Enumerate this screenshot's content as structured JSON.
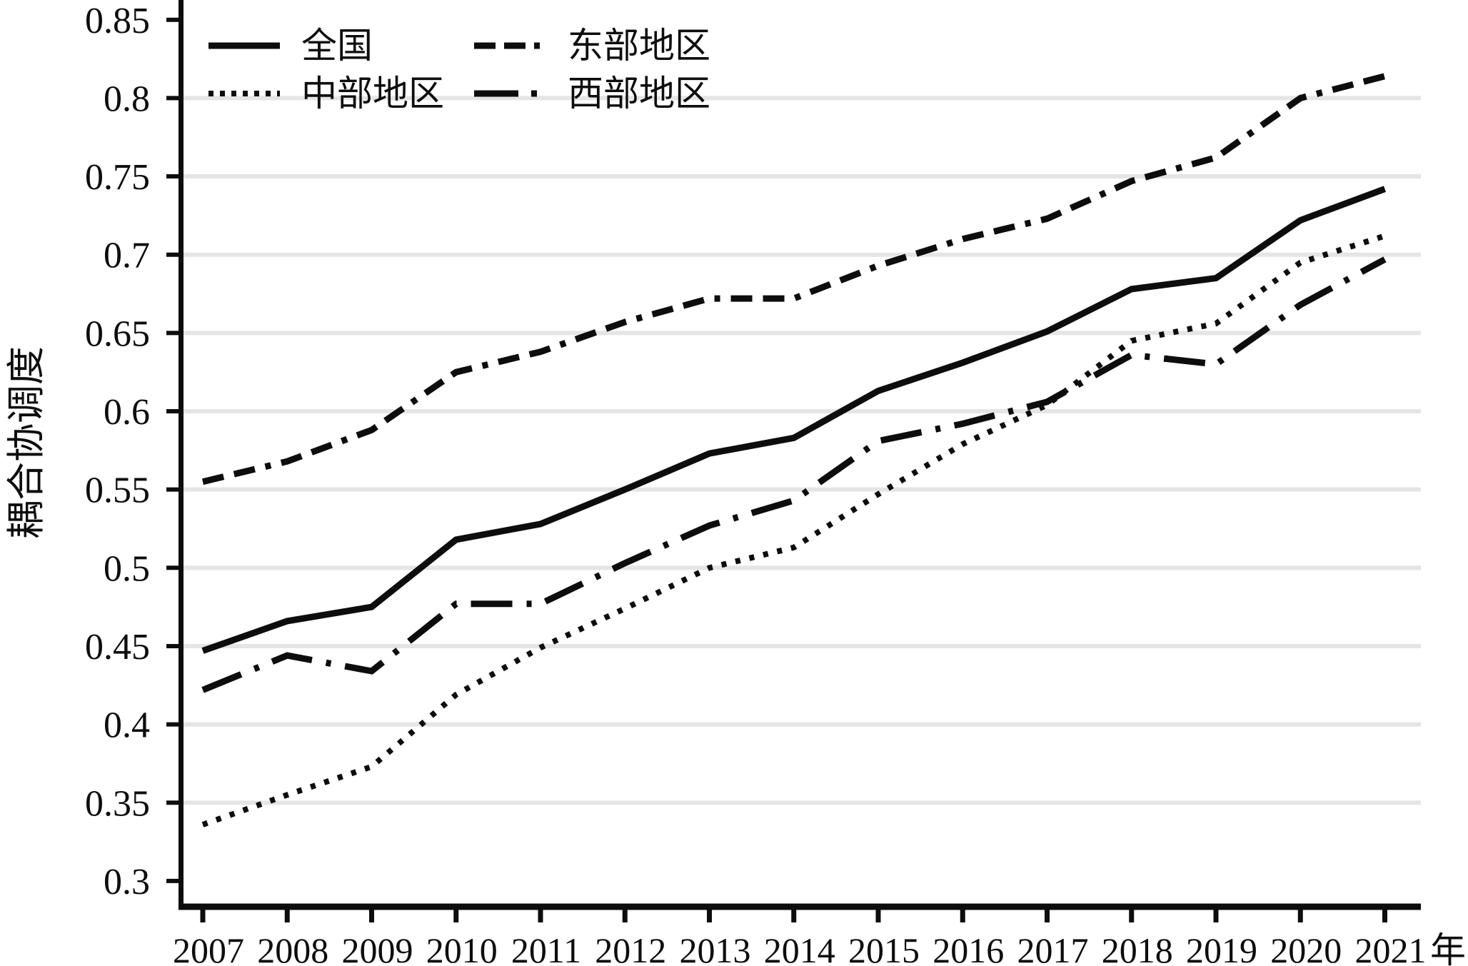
{
  "chart_data": {
    "type": "line",
    "title": "",
    "xlabel": "年",
    "ylabel": "耦合协调度",
    "x": [
      2007,
      2008,
      2009,
      2010,
      2011,
      2012,
      2013,
      2014,
      2015,
      2016,
      2017,
      2018,
      2019,
      2020,
      2021
    ],
    "x_tick_labels": [
      "2007",
      "2008",
      "2009",
      "2010",
      "2011",
      "2012",
      "2013",
      "2014",
      "2015",
      "2016",
      "2017",
      "2018",
      "2019",
      "2020",
      "2021"
    ],
    "ylim": [
      0.3,
      0.862
    ],
    "yticks": [
      0.3,
      0.35,
      0.4,
      0.45,
      0.5,
      0.55,
      0.6,
      0.65,
      0.7,
      0.75,
      0.8,
      0.85
    ],
    "ytick_labels": [
      "0.3",
      "0.35",
      "0.4",
      "0.45",
      "0.5",
      "0.55",
      "0.6",
      "0.65",
      "0.7",
      "0.75",
      "0.8",
      "0.85"
    ],
    "grid": "horizontal gridlines at 0.35-0.80, light gray",
    "legend_position": "top-left inside plot, 2 columns x 2 rows",
    "line_color": "#0d0d0d",
    "gridline_color": "#e5e5e5",
    "series": [
      {
        "name": "全国",
        "style": "solid",
        "values": [
          0.447,
          0.466,
          0.475,
          0.518,
          0.528,
          0.55,
          0.573,
          0.583,
          0.613,
          0.631,
          0.651,
          0.678,
          0.685,
          0.722,
          0.742
        ]
      },
      {
        "name": "东部地区",
        "style": "dashed",
        "values": [
          0.555,
          0.568,
          0.588,
          0.625,
          0.638,
          0.657,
          0.672,
          0.672,
          0.693,
          0.71,
          0.723,
          0.747,
          0.762,
          0.8,
          0.814
        ]
      },
      {
        "name": "中部地区",
        "style": "dotted",
        "values": [
          0.336,
          0.355,
          0.373,
          0.419,
          0.449,
          0.474,
          0.5,
          0.513,
          0.547,
          0.579,
          0.604,
          0.645,
          0.656,
          0.695,
          0.712
        ]
      },
      {
        "name": "西部地区",
        "style": "long-dash-dot",
        "values": [
          0.422,
          0.444,
          0.434,
          0.477,
          0.477,
          0.503,
          0.527,
          0.543,
          0.581,
          0.592,
          0.606,
          0.636,
          0.63,
          0.668,
          0.697
        ]
      }
    ]
  }
}
